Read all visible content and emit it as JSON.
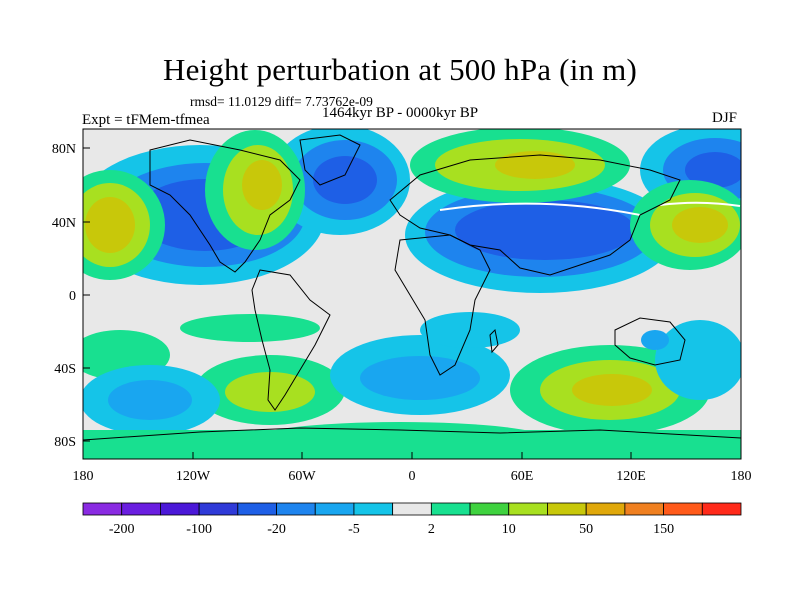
{
  "title": "Height perturbation at 500 hPa (in m)",
  "stats": "rmsd= 11.0129 diff= 7.73762e-09",
  "period": "1464kyr BP - 0000kyr BP",
  "experiment": "Expt = tFMem-tfmea",
  "season": "DJF",
  "lat_ticks": [
    "80N",
    "40N",
    "0",
    "40S",
    "80S"
  ],
  "lon_ticks": [
    "180",
    "120W",
    "60W",
    "0",
    "60E",
    "120E",
    "180"
  ],
  "colorbar": {
    "colors": [
      "#8a2be2",
      "#6a1ee0",
      "#4b18d8",
      "#2f3ad8",
      "#1e5fe6",
      "#1e84ee",
      "#19a6f0",
      "#15c4e8",
      "#e8e8e8",
      "#18e090",
      "#3fd23f",
      "#a8e020",
      "#c8c80a",
      "#e0a80a",
      "#f08020",
      "#ff5a1a",
      "#ff2a1a"
    ],
    "labels": [
      "-200",
      "-100",
      "-20",
      "-5",
      "2",
      "10",
      "50",
      "150"
    ]
  }
}
